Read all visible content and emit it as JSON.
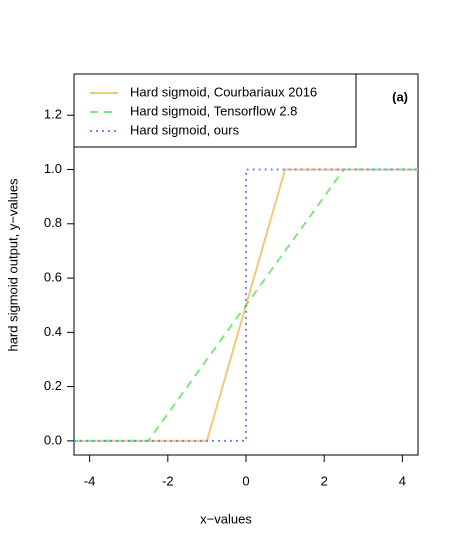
{
  "chart_data": {
    "type": "line",
    "xlabel": "x−values",
    "ylabel": "hard sigmoid output, y−values",
    "annotation": "(a)",
    "xlim": [
      -4.4,
      4.4
    ],
    "ylim": [
      -0.052,
      1.352
    ],
    "xticks": [
      -4,
      -2,
      0,
      2,
      4
    ],
    "yticks": [
      {
        "value": 0,
        "label": "0.0"
      },
      {
        "value": 0.2,
        "label": "0.2"
      },
      {
        "value": 0.4,
        "label": "0.4"
      },
      {
        "value": 0.6,
        "label": "0.6"
      },
      {
        "value": 0.8,
        "label": "0.8"
      },
      {
        "value": 1,
        "label": "1.0"
      },
      {
        "value": 1.2,
        "label": "1.2"
      }
    ],
    "legend": "top-left",
    "series": [
      {
        "name": "Hard sigmoid, Courbariaux 2016",
        "color": "#f5c87a",
        "dash": "solid",
        "x": [
          -4.4,
          -1,
          1,
          4.4
        ],
        "values": [
          0,
          0,
          1,
          1
        ]
      },
      {
        "name": "Hard sigmoid, Tensorflow 2.8",
        "color": "#7ee87e",
        "dash": "dashed",
        "x": [
          -4.4,
          -2.5,
          2.5,
          4.4
        ],
        "values": [
          0,
          0,
          1,
          1
        ]
      },
      {
        "name": "Hard sigmoid, ours",
        "color": "#8080ee",
        "dash": "dotted",
        "x": [
          -4.4,
          0,
          0,
          4.4
        ],
        "values": [
          0,
          0,
          1,
          1
        ]
      }
    ]
  }
}
